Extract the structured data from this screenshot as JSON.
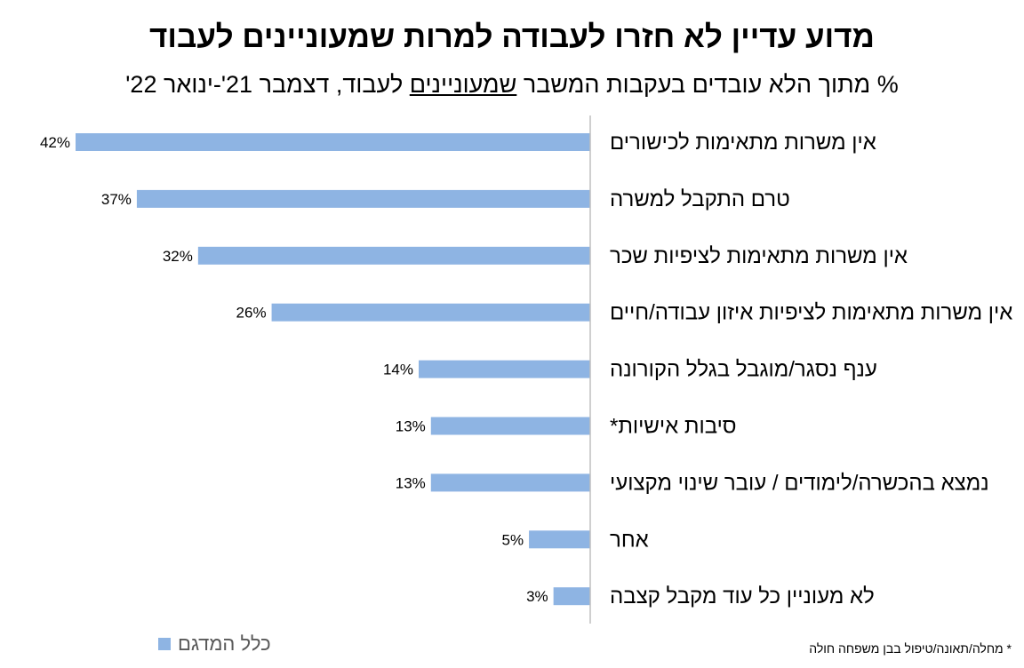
{
  "chart_data": {
    "type": "bar",
    "orientation": "horizontal",
    "title": "מדוע עדיין לא חזרו לעבודה למרות שמעוניינים לעבוד",
    "subtitle_prefix": "% מתוך הלא עובדים בעקבות המשבר ",
    "subtitle_underlined": "שמעוניינים",
    "subtitle_suffix": " לעבוד, דצמבר 21'-ינואר 22'",
    "categories": [
      "אין משרות מתאימות לכישורים",
      "טרם התקבל למשרה",
      "אין משרות מתאימות לציפיות שכר",
      "אין משרות מתאימות לציפיות איזון עבודה/חיים",
      "ענף נסגר/מוגבל בגלל הקורונה",
      "סיבות אישיות*",
      "נמצא בהכשרה/לימודים / עובר שינוי מקצועי",
      "אחר",
      "לא מעוניין כל עוד מקבל קצבה"
    ],
    "series": [
      {
        "name": "כלל המדגם",
        "values": [
          42,
          37,
          32,
          26,
          14,
          13,
          13,
          5,
          3
        ],
        "labels": [
          "42%",
          "37%",
          "32%",
          "26%",
          "14%",
          "13%",
          "13%",
          "5%",
          "3%"
        ]
      }
    ],
    "xlim": [
      0,
      45
    ],
    "legend_position": "bottom-left",
    "bar_color": "#8eb4e3"
  },
  "footnote": "* מחלה/תאונה/טיפול בבן משפחה חולה"
}
